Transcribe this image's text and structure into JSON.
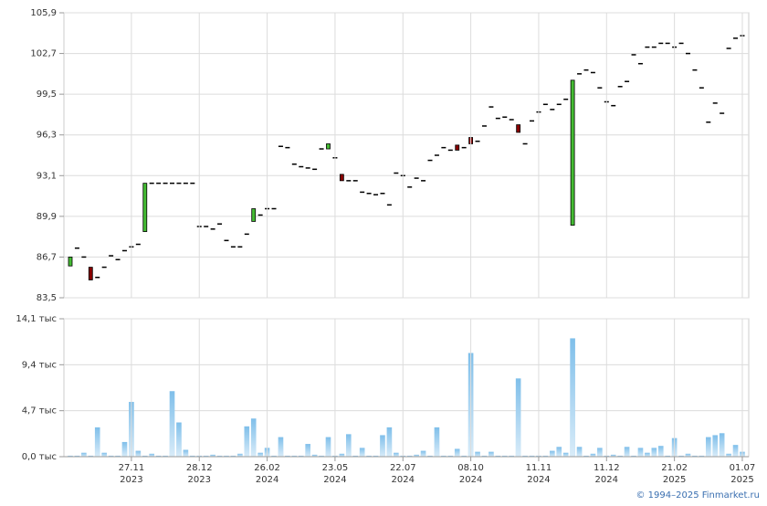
{
  "chart_data": [
    {
      "type": "candlestick",
      "open": [
        86.0,
        87.4,
        86.7,
        85.9,
        85.1,
        85.9,
        86.8,
        86.5,
        87.2,
        87.5,
        87.7,
        88.7,
        92.5,
        92.5,
        92.5,
        92.5,
        92.5,
        92.5,
        92.5,
        89.1,
        89.1,
        88.9,
        89.3,
        88.0,
        87.5,
        87.5,
        88.5,
        89.5,
        90.0,
        90.5,
        90.5,
        95.4,
        95.3,
        94.0,
        93.8,
        93.7,
        93.6,
        95.2,
        95.2,
        94.5,
        93.2,
        92.7,
        92.7,
        91.8,
        91.7,
        91.6,
        91.7,
        90.8,
        93.3,
        93.1,
        92.2,
        92.9,
        92.7,
        94.3,
        94.7,
        95.3,
        95.1,
        95.5,
        95.3,
        96.1,
        95.8,
        97.0,
        98.5,
        97.6,
        97.7,
        97.5,
        97.1,
        95.6,
        97.4,
        98.1,
        98.7,
        98.3,
        98.7,
        99.1,
        89.2,
        101.1,
        101.4,
        101.2,
        100.0,
        98.9,
        98.6,
        100.1,
        100.5,
        102.6,
        101.9,
        103.2,
        103.2,
        103.5,
        103.5,
        103.2,
        103.5,
        102.7,
        101.4,
        100.0,
        97.3,
        98.8,
        98.0,
        103.1,
        103.9,
        104.1
      ],
      "close": [
        86.7,
        87.4,
        86.7,
        84.9,
        85.1,
        85.9,
        86.8,
        86.5,
        87.2,
        87.5,
        87.7,
        92.5,
        92.5,
        92.5,
        92.5,
        92.5,
        92.5,
        92.5,
        92.5,
        89.1,
        89.1,
        88.9,
        89.3,
        88.0,
        87.5,
        87.5,
        88.5,
        90.5,
        90.0,
        90.5,
        90.5,
        95.4,
        95.3,
        94.0,
        93.8,
        93.7,
        93.6,
        95.2,
        95.6,
        94.5,
        92.7,
        92.7,
        92.7,
        91.8,
        91.7,
        91.6,
        91.7,
        90.8,
        93.3,
        93.1,
        92.2,
        92.9,
        92.7,
        94.3,
        94.7,
        95.3,
        95.1,
        95.1,
        95.3,
        95.6,
        95.8,
        97.0,
        98.5,
        97.6,
        97.7,
        97.5,
        96.5,
        95.6,
        97.4,
        98.1,
        98.7,
        98.3,
        98.7,
        99.1,
        100.6,
        101.1,
        101.4,
        101.2,
        100.0,
        98.9,
        98.6,
        100.1,
        100.5,
        102.6,
        101.9,
        103.2,
        103.2,
        103.5,
        103.5,
        103.2,
        103.5,
        102.7,
        101.4,
        100.0,
        97.3,
        98.8,
        98.0,
        103.1,
        103.9,
        104.1
      ],
      "up_color": "#44bb33",
      "down_color": "#880000",
      "flat_color": "#000000",
      "ylim": [
        83.5,
        105.9
      ],
      "yticks": [
        {
          "value": 83.5,
          "label": "83,5"
        },
        {
          "value": 86.7,
          "label": "86,7"
        },
        {
          "value": 89.9,
          "label": "89,9"
        },
        {
          "value": 93.1,
          "label": "93,1"
        },
        {
          "value": 96.3,
          "label": "96,3"
        },
        {
          "value": 99.5,
          "label": "99,5"
        },
        {
          "value": 102.7,
          "label": "102,7"
        },
        {
          "value": 105.9,
          "label": "105,9"
        }
      ],
      "grid": true
    },
    {
      "type": "bar",
      "values": [
        0.1,
        0.1,
        0.4,
        0.1,
        3.0,
        0.4,
        0.1,
        0.1,
        1.5,
        5.6,
        0.6,
        0.1,
        0.3,
        0.1,
        0.1,
        6.7,
        3.5,
        0.7,
        0.1,
        0.1,
        0.1,
        0.2,
        0.1,
        0.1,
        0.1,
        0.3,
        3.1,
        3.9,
        0.4,
        0.9,
        0.1,
        2.0,
        0.1,
        0.1,
        0.1,
        1.3,
        0.2,
        0.1,
        2.0,
        0.1,
        0.3,
        2.3,
        0.1,
        0.9,
        0.1,
        0.1,
        2.2,
        3.0,
        0.4,
        0.1,
        0.1,
        0.2,
        0.6,
        0.1,
        3.0,
        0.1,
        0.1,
        0.8,
        0.1,
        10.6,
        0.5,
        0.1,
        0.5,
        0.1,
        0.1,
        0.1,
        8.0,
        0.1,
        0.1,
        0.1,
        0.1,
        0.6,
        1.0,
        0.4,
        12.1,
        1.0,
        0.1,
        0.3,
        0.9,
        0.1,
        0.2,
        0.1,
        1.0,
        0.1,
        0.9,
        0.4,
        0.9,
        1.1,
        0.1,
        1.9,
        0.1,
        0.3,
        0.1,
        0.1,
        2.0,
        2.2,
        2.4,
        0.3,
        1.2,
        0.5
      ],
      "color": "#7fbfea",
      "ylim": [
        0,
        14.1
      ],
      "yticks": [
        {
          "value": 0,
          "label": "0,0 тыс"
        },
        {
          "value": 4.7,
          "label": "4,7 тыс"
        },
        {
          "value": 9.4,
          "label": "9,4 тыс"
        },
        {
          "value": 14.1,
          "label": "14,1 тыс"
        }
      ],
      "xticks": [
        {
          "value": 9,
          "label": [
            "27.11",
            "2023"
          ]
        },
        {
          "value": 19,
          "label": [
            "28.12",
            "2023"
          ]
        },
        {
          "value": 29,
          "label": [
            "26.02",
            "2024"
          ]
        },
        {
          "value": 39,
          "label": [
            "23.05",
            "2024"
          ]
        },
        {
          "value": 49,
          "label": [
            "22.07",
            "2024"
          ]
        },
        {
          "value": 59,
          "label": [
            "08.10",
            "2024"
          ]
        },
        {
          "value": 69,
          "label": [
            "11.11",
            "2024"
          ]
        },
        {
          "value": 79,
          "label": [
            "11.12",
            "2024"
          ]
        },
        {
          "value": 89,
          "label": [
            "21.02",
            "2025"
          ]
        },
        {
          "value": 99,
          "label": [
            "01.07",
            "2025"
          ]
        }
      ],
      "grid": true
    }
  ],
  "footer": "© 1994–2025 Finmarket.ru"
}
